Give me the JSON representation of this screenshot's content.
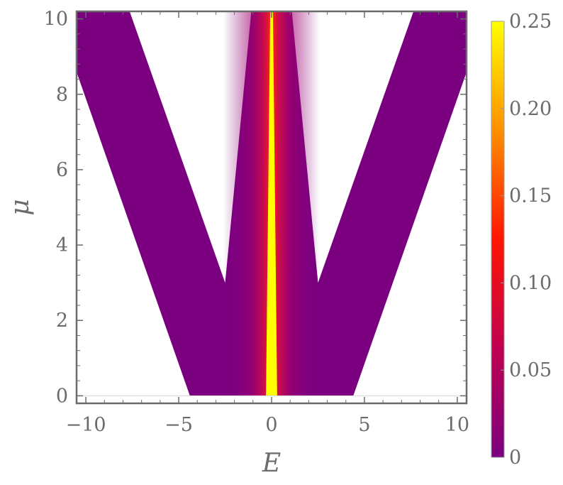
{
  "chart_data": {
    "type": "heatmap",
    "title": "",
    "xlabel": "E",
    "ylabel": "μ",
    "xlim": [
      -10.5,
      10.5
    ],
    "ylim": [
      -0.2,
      10.2
    ],
    "x_ticks": [
      -10,
      -5,
      0,
      5,
      10
    ],
    "x_tick_labels": [
      "−10",
      "−5",
      "0",
      "5",
      "10"
    ],
    "y_ticks": [
      0,
      2,
      4,
      6,
      8,
      10
    ],
    "y_tick_labels": [
      "0",
      "2",
      "4",
      "6",
      "8",
      "10"
    ],
    "colorbar": {
      "range": [
        0,
        0.25
      ],
      "ticks": [
        0,
        0.05,
        0.1,
        0.15,
        0.2,
        0.25
      ],
      "tick_labels": [
        "0",
        "0.05",
        "0.10",
        "0.15",
        "0.20",
        "0.25"
      ],
      "colors": [
        "#7a0080",
        "#c00050",
        "#ff1500",
        "#ff9000",
        "#ffff00"
      ]
    },
    "regions": {
      "band_inner_edge_at_mu0": 4.4,
      "band_outer_edge_at_mu10": 11.5,
      "band_inner_edge_at_mu10": 7.5,
      "notch_tip": {
        "E": 2.5,
        "mu": 3.0
      },
      "central_wedge_half_width_at_mu10": 0.9,
      "central_peak_half_width": 0.3
    },
    "grid": false,
    "legend": "right colorbar"
  }
}
